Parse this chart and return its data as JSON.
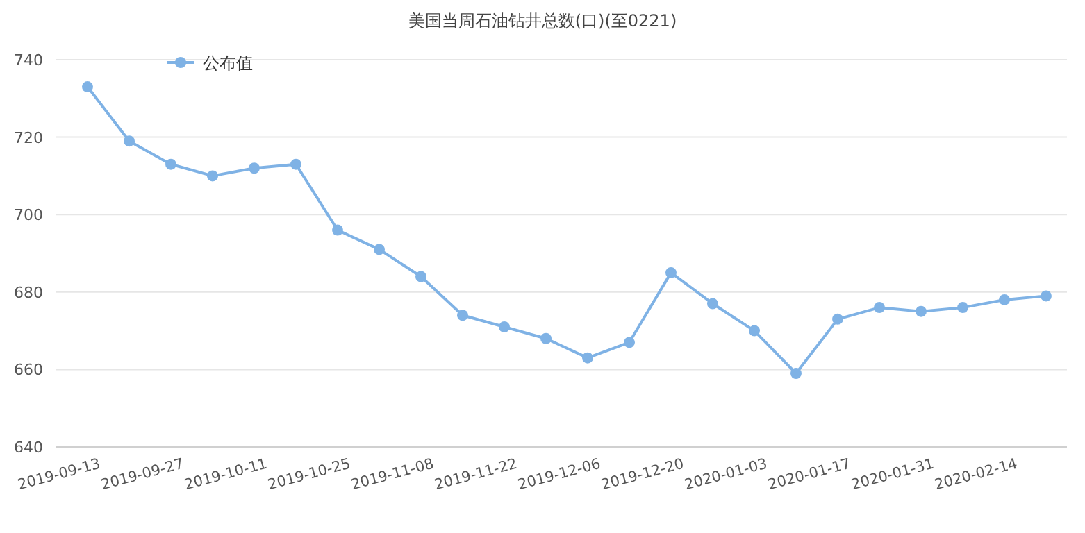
{
  "chart_data": {
    "type": "line",
    "title": "美国当周石油钻井总数(口)(至0221)",
    "categories": [
      "2019-09-13",
      null,
      "2019-09-27",
      null,
      "2019-10-11",
      null,
      "2019-10-25",
      null,
      "2019-11-08",
      null,
      "2019-11-22",
      null,
      "2019-12-06",
      null,
      "2019-12-20",
      null,
      "2020-01-03",
      null,
      "2020-01-17",
      null,
      "2020-01-31",
      null,
      "2020-02-14",
      null
    ],
    "series": [
      {
        "name": "公布值",
        "color": "#7fb2e5",
        "values": [
          733,
          719,
          713,
          710,
          712,
          713,
          696,
          691,
          684,
          674,
          671,
          668,
          663,
          667,
          685,
          677,
          670,
          659,
          673,
          676,
          675,
          676,
          678,
          679
        ]
      }
    ],
    "ylim": [
      640,
      740
    ],
    "yticks": [
      640,
      660,
      680,
      700,
      720,
      740
    ],
    "grid": "y",
    "legend": "top left",
    "marker": "circle",
    "line_style": "solid"
  }
}
